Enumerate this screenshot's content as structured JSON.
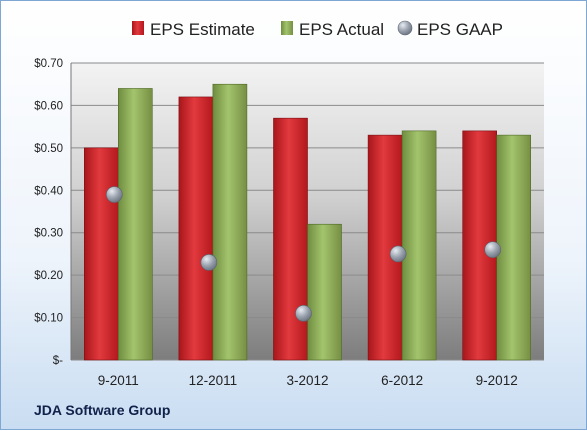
{
  "company": "JDA Software Group",
  "colors": {
    "estimate": "#d42025",
    "actual": "#8fb15a",
    "gaap": "#9aa4b4"
  },
  "chart_data": {
    "type": "bar",
    "title": "",
    "xlabel": "",
    "ylabel": "",
    "categories": [
      "9-2011",
      "12-2011",
      "3-2012",
      "6-2012",
      "9-2012"
    ],
    "ylim": [
      0,
      0.7
    ],
    "ytick_values": [
      0,
      0.1,
      0.2,
      0.3,
      0.4,
      0.5,
      0.6,
      0.7
    ],
    "ytick_labels": [
      "$-",
      "$0.10",
      "$0.20",
      "$0.30",
      "$0.40",
      "$0.50",
      "$0.60",
      "$0.70"
    ],
    "grid": true,
    "legend_position": "top",
    "series": [
      {
        "name": "EPS Estimate",
        "kind": "bar",
        "values": [
          0.5,
          0.62,
          0.57,
          0.53,
          0.54
        ]
      },
      {
        "name": "EPS Actual",
        "kind": "bar",
        "values": [
          0.64,
          0.65,
          0.32,
          0.54,
          0.53
        ]
      },
      {
        "name": "EPS GAAP",
        "kind": "marker",
        "values": [
          0.39,
          0.23,
          0.11,
          0.25,
          0.26
        ]
      }
    ]
  }
}
